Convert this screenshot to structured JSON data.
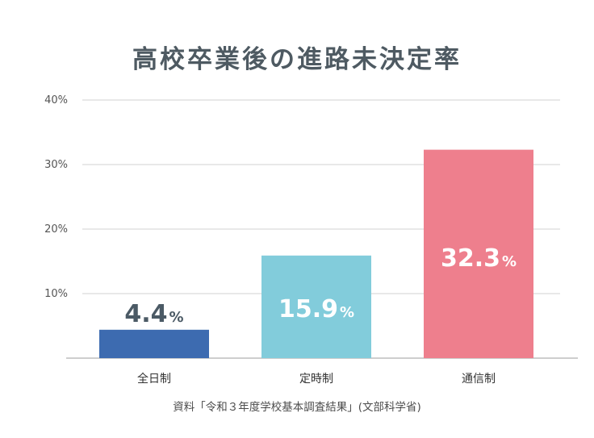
{
  "chart_data": {
    "type": "bar",
    "title": "高校卒業後の進路未決定率",
    "categories": [
      "全日制",
      "定時制",
      "通信制"
    ],
    "values": [
      4.4,
      15.9,
      32.3
    ],
    "value_labels": [
      "4.4",
      "15.9",
      "32.3"
    ],
    "value_suffix": "%",
    "colors": [
      "#3d6bb0",
      "#82ccdb",
      "#ee7f8d"
    ],
    "label_colors": [
      "#4b5a65",
      "#ffffff",
      "#ffffff"
    ],
    "ylim": [
      0,
      40
    ],
    "yticks": [
      10,
      20,
      30,
      40
    ],
    "ytick_labels": [
      "10%",
      "20%",
      "30%",
      "40%"
    ],
    "grid": true,
    "xlabel": "",
    "ylabel": "",
    "source": "資料「令和３年度学校基本調査結果」(文部科学省)"
  }
}
